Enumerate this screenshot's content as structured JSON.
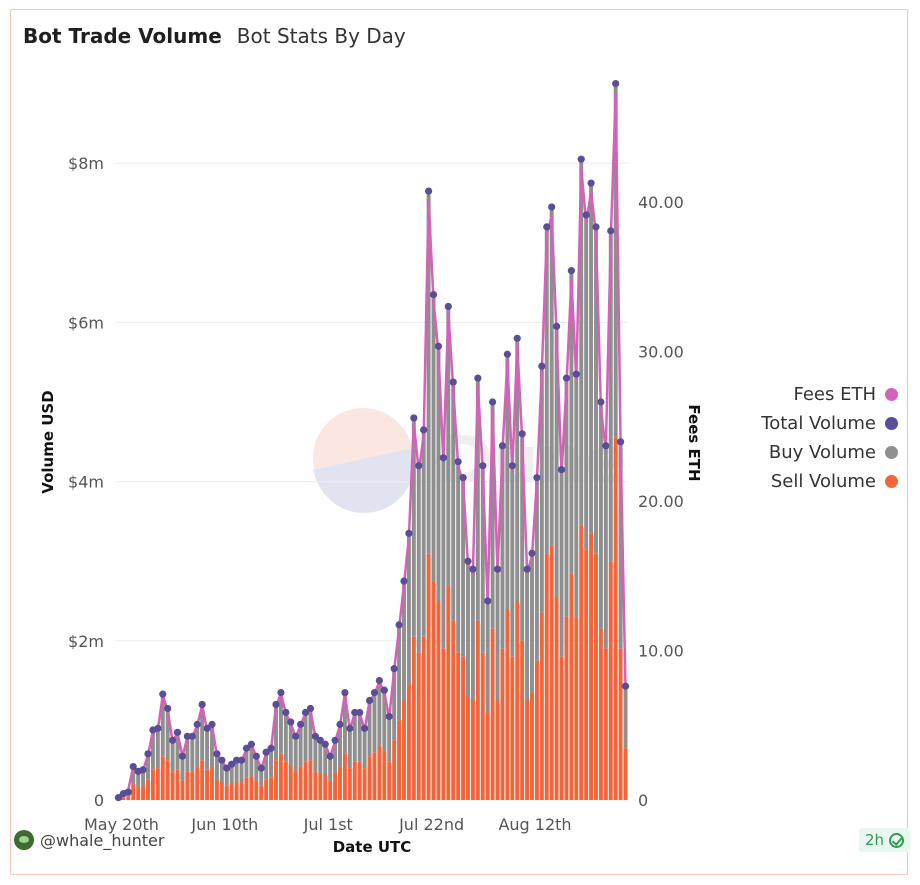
{
  "header": {
    "title": "Bot Trade Volume",
    "subtitle": "Bot Stats By Day"
  },
  "author": {
    "handle": "@whale_hunter"
  },
  "badge": {
    "label": "2h"
  },
  "chart_data": {
    "type": "bar",
    "stacked": true,
    "xlabel": "Date UTC",
    "ylabel": "Volume USD",
    "y2label": "Fees ETH",
    "x_ticks": [
      "May 20th",
      "Jun 10th",
      "Jul 1st",
      "Jul 22nd",
      "Aug 12th"
    ],
    "y_ticks": [
      "0",
      "$2m",
      "$4m",
      "$6m",
      "$8m"
    ],
    "y2_ticks": [
      "0",
      "10.00",
      "20.00",
      "30.00",
      "40.00"
    ],
    "ylim": [
      0,
      9000000
    ],
    "y2lim": [
      0,
      48
    ],
    "series_colors": {
      "fees_eth": "#d462b8",
      "total_volume": "#5b4e96",
      "buy_volume": "#8f8f8f",
      "sell_volume": "#f2653a"
    },
    "legend": [
      {
        "key": "fees_eth",
        "label": "Fees ETH"
      },
      {
        "key": "total_volume",
        "label": "Total Volume"
      },
      {
        "key": "buy_volume",
        "label": "Buy Volume"
      },
      {
        "key": "sell_volume",
        "label": "Sell Volume"
      }
    ],
    "total_volume": [
      0.03,
      0.08,
      0.1,
      0.42,
      0.36,
      0.38,
      0.58,
      0.88,
      0.9,
      1.33,
      1.15,
      0.75,
      0.85,
      0.55,
      0.8,
      0.8,
      0.95,
      1.2,
      0.9,
      0.95,
      0.58,
      0.5,
      0.4,
      0.45,
      0.5,
      0.5,
      0.65,
      0.7,
      0.55,
      0.4,
      0.6,
      0.65,
      1.2,
      1.35,
      1.1,
      0.98,
      0.8,
      0.95,
      1.1,
      1.15,
      0.8,
      0.75,
      0.7,
      0.55,
      0.75,
      0.95,
      1.35,
      0.9,
      1.1,
      1.1,
      0.9,
      1.25,
      1.35,
      1.5,
      1.38,
      1.05,
      1.65,
      2.2,
      2.75,
      3.35,
      4.8,
      4.2,
      4.65,
      7.65,
      6.35,
      5.7,
      4.3,
      6.2,
      5.25,
      4.25,
      4.05,
      3.0,
      2.9,
      5.3,
      4.2,
      2.5,
      5.0,
      2.9,
      4.45,
      5.6,
      4.2,
      5.8,
      4.6,
      2.9,
      3.1,
      4.05,
      5.45,
      7.2,
      7.45,
      5.95,
      4.15,
      5.3,
      6.65,
      5.35,
      8.05,
      7.35,
      7.75,
      7.2,
      5.0,
      4.45,
      7.15,
      9.0,
      4.5,
      1.43
    ],
    "fees_eth": [
      0.2,
      0.5,
      0.7,
      2.2,
      1.9,
      2.0,
      3.0,
      4.6,
      4.7,
      7.0,
      6.0,
      3.9,
      4.5,
      2.9,
      4.2,
      4.2,
      5.0,
      6.3,
      4.7,
      5.0,
      3.0,
      2.6,
      2.1,
      2.4,
      2.6,
      2.6,
      3.4,
      3.7,
      2.9,
      2.1,
      3.1,
      3.4,
      6.3,
      7.1,
      5.8,
      5.1,
      4.2,
      5.0,
      5.8,
      6.0,
      4.2,
      3.9,
      3.7,
      2.9,
      3.9,
      5.0,
      7.1,
      4.7,
      5.8,
      5.8,
      4.7,
      6.6,
      7.1,
      7.9,
      7.2,
      5.5,
      8.7,
      11.5,
      14.4,
      17.6,
      25.2,
      22.0,
      24.4,
      40.2,
      33.4,
      29.9,
      22.6,
      32.6,
      27.6,
      22.3,
      21.3,
      15.7,
      15.2,
      27.8,
      22.0,
      13.1,
      26.2,
      15.2,
      23.4,
      29.4,
      22.0,
      30.5,
      24.1,
      15.2,
      16.3,
      21.3,
      28.6,
      37.8,
      39.1,
      31.2,
      21.8,
      27.8,
      34.9,
      28.1,
      42.3,
      38.6,
      40.7,
      37.8,
      26.2,
      23.4,
      37.6,
      47.3,
      23.7,
      7.5
    ],
    "sell_volume": [
      0.01,
      0.03,
      0.04,
      0.2,
      0.15,
      0.17,
      0.26,
      0.38,
      0.4,
      0.55,
      0.5,
      0.35,
      0.38,
      0.24,
      0.36,
      0.36,
      0.42,
      0.5,
      0.38,
      0.42,
      0.26,
      0.22,
      0.18,
      0.2,
      0.22,
      0.22,
      0.28,
      0.3,
      0.24,
      0.18,
      0.26,
      0.28,
      0.5,
      0.58,
      0.48,
      0.44,
      0.36,
      0.42,
      0.48,
      0.5,
      0.36,
      0.34,
      0.32,
      0.24,
      0.34,
      0.42,
      0.58,
      0.4,
      0.48,
      0.48,
      0.4,
      0.55,
      0.6,
      0.68,
      0.62,
      0.48,
      0.75,
      1.0,
      1.25,
      1.45,
      2.05,
      1.85,
      2.05,
      3.1,
      2.75,
      2.5,
      1.9,
      2.7,
      2.25,
      1.85,
      1.8,
      1.3,
      1.25,
      2.25,
      1.85,
      1.1,
      2.15,
      1.25,
      1.9,
      2.4,
      1.8,
      2.5,
      2.0,
      1.25,
      1.35,
      1.75,
      2.35,
      3.1,
      3.2,
      2.55,
      1.8,
      2.3,
      2.85,
      2.3,
      3.45,
      3.15,
      3.35,
      3.1,
      2.15,
      1.9,
      3.0,
      4.55,
      1.9,
      0.65
    ]
  }
}
